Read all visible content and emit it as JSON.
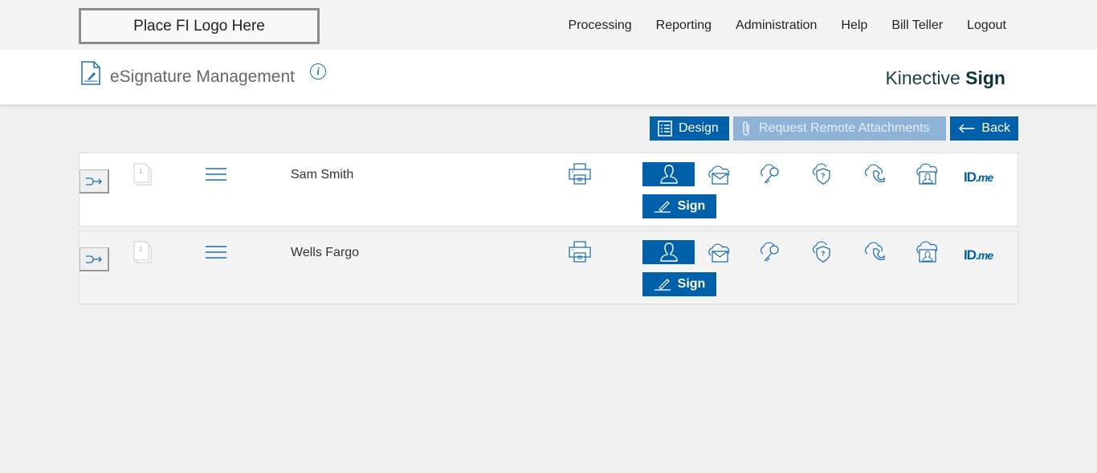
{
  "header": {
    "logo_text": "Place FI Logo Here",
    "nav": [
      "Processing",
      "Reporting",
      "Administration",
      "Help",
      "Bill Teller",
      "Logout"
    ]
  },
  "titlebar": {
    "title": "eSignature Management",
    "brand_light": "Kinective",
    "brand_bold": "Sign"
  },
  "toolbar": {
    "design": "Design",
    "request": "Request Remote Attachments",
    "back": "Back"
  },
  "colors": {
    "primary": "#0060a9",
    "disabled": "#8fb3d6"
  },
  "rows": [
    {
      "name": "Sam Smith",
      "page": "1",
      "sign": "Sign",
      "idme": "ID",
      "idme_suffix": ".me"
    },
    {
      "name": "Wells Fargo",
      "page": "1",
      "sign": "Sign",
      "idme": "ID",
      "idme_suffix": ".me"
    }
  ]
}
